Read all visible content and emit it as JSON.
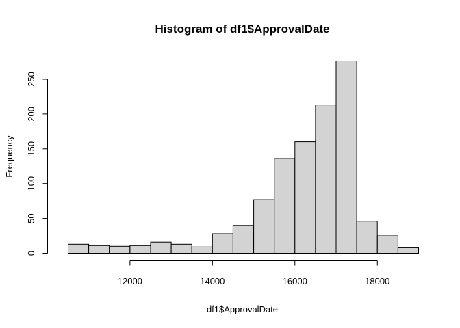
{
  "chart_data": {
    "type": "bar",
    "title": "Histogram of df1$ApprovalDate",
    "xlabel": "df1$ApprovalDate",
    "ylabel": "Frequency",
    "bin_edges": [
      10500,
      11000,
      11500,
      12000,
      12500,
      13000,
      13500,
      14000,
      14500,
      15000,
      15500,
      16000,
      16500,
      17000,
      17500,
      18000,
      18500,
      19000
    ],
    "values": [
      13,
      11,
      10,
      11,
      16,
      13,
      9,
      28,
      40,
      77,
      136,
      160,
      213,
      276,
      46,
      25,
      8
    ],
    "xlim": [
      10500,
      19000
    ],
    "ylim": [
      0,
      276
    ],
    "x_ticks": [
      12000,
      14000,
      16000,
      18000
    ],
    "y_ticks": [
      0,
      50,
      100,
      150,
      200,
      250
    ],
    "bar_color": "#d3d3d3",
    "grid": false,
    "legend": "none"
  }
}
